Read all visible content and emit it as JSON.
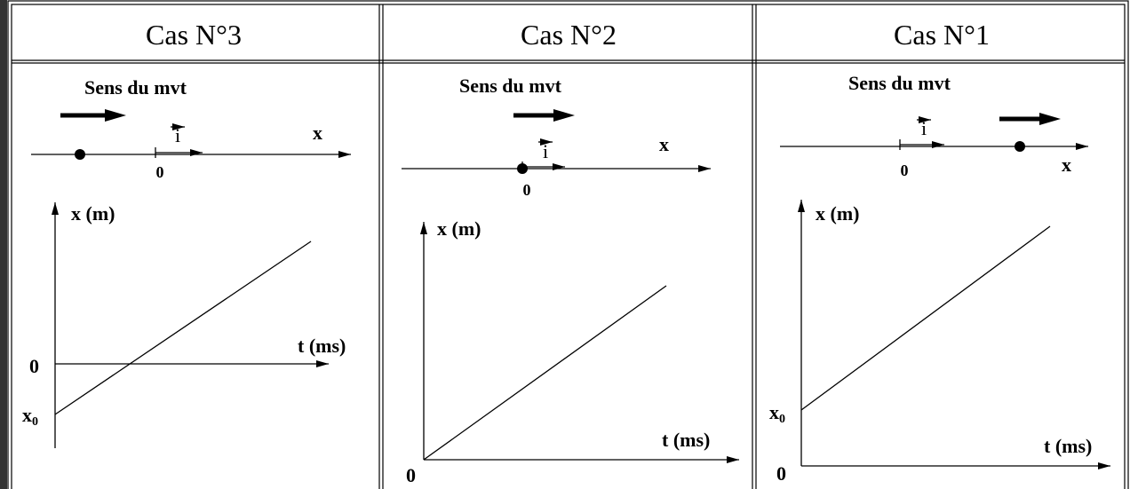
{
  "table": {
    "columns": [
      {
        "header": "Cas N°3",
        "direction_label": "Sens du mvt",
        "unit_vector": "i",
        "axis_label": "x",
        "origin_label": "0",
        "y_axis_label": "x (m)",
        "x_axis_label": "t (ms)",
        "graph_origin_label": "0",
        "intercept_label": "x",
        "intercept_subscript": "0"
      },
      {
        "header": "Cas N°2",
        "direction_label": "Sens du mvt",
        "unit_vector": "i",
        "axis_label": "x",
        "origin_label": "0",
        "y_axis_label": "x (m)",
        "x_axis_label": "t (ms)",
        "graph_origin_label": "0"
      },
      {
        "header": "Cas N°1",
        "direction_label": "Sens du mvt",
        "unit_vector": "i",
        "axis_label": "x",
        "origin_label": "0",
        "y_axis_label": "x (m)",
        "x_axis_label": "t (ms)",
        "graph_origin_label": "0",
        "intercept_label": "x",
        "intercept_subscript": "0"
      }
    ]
  }
}
